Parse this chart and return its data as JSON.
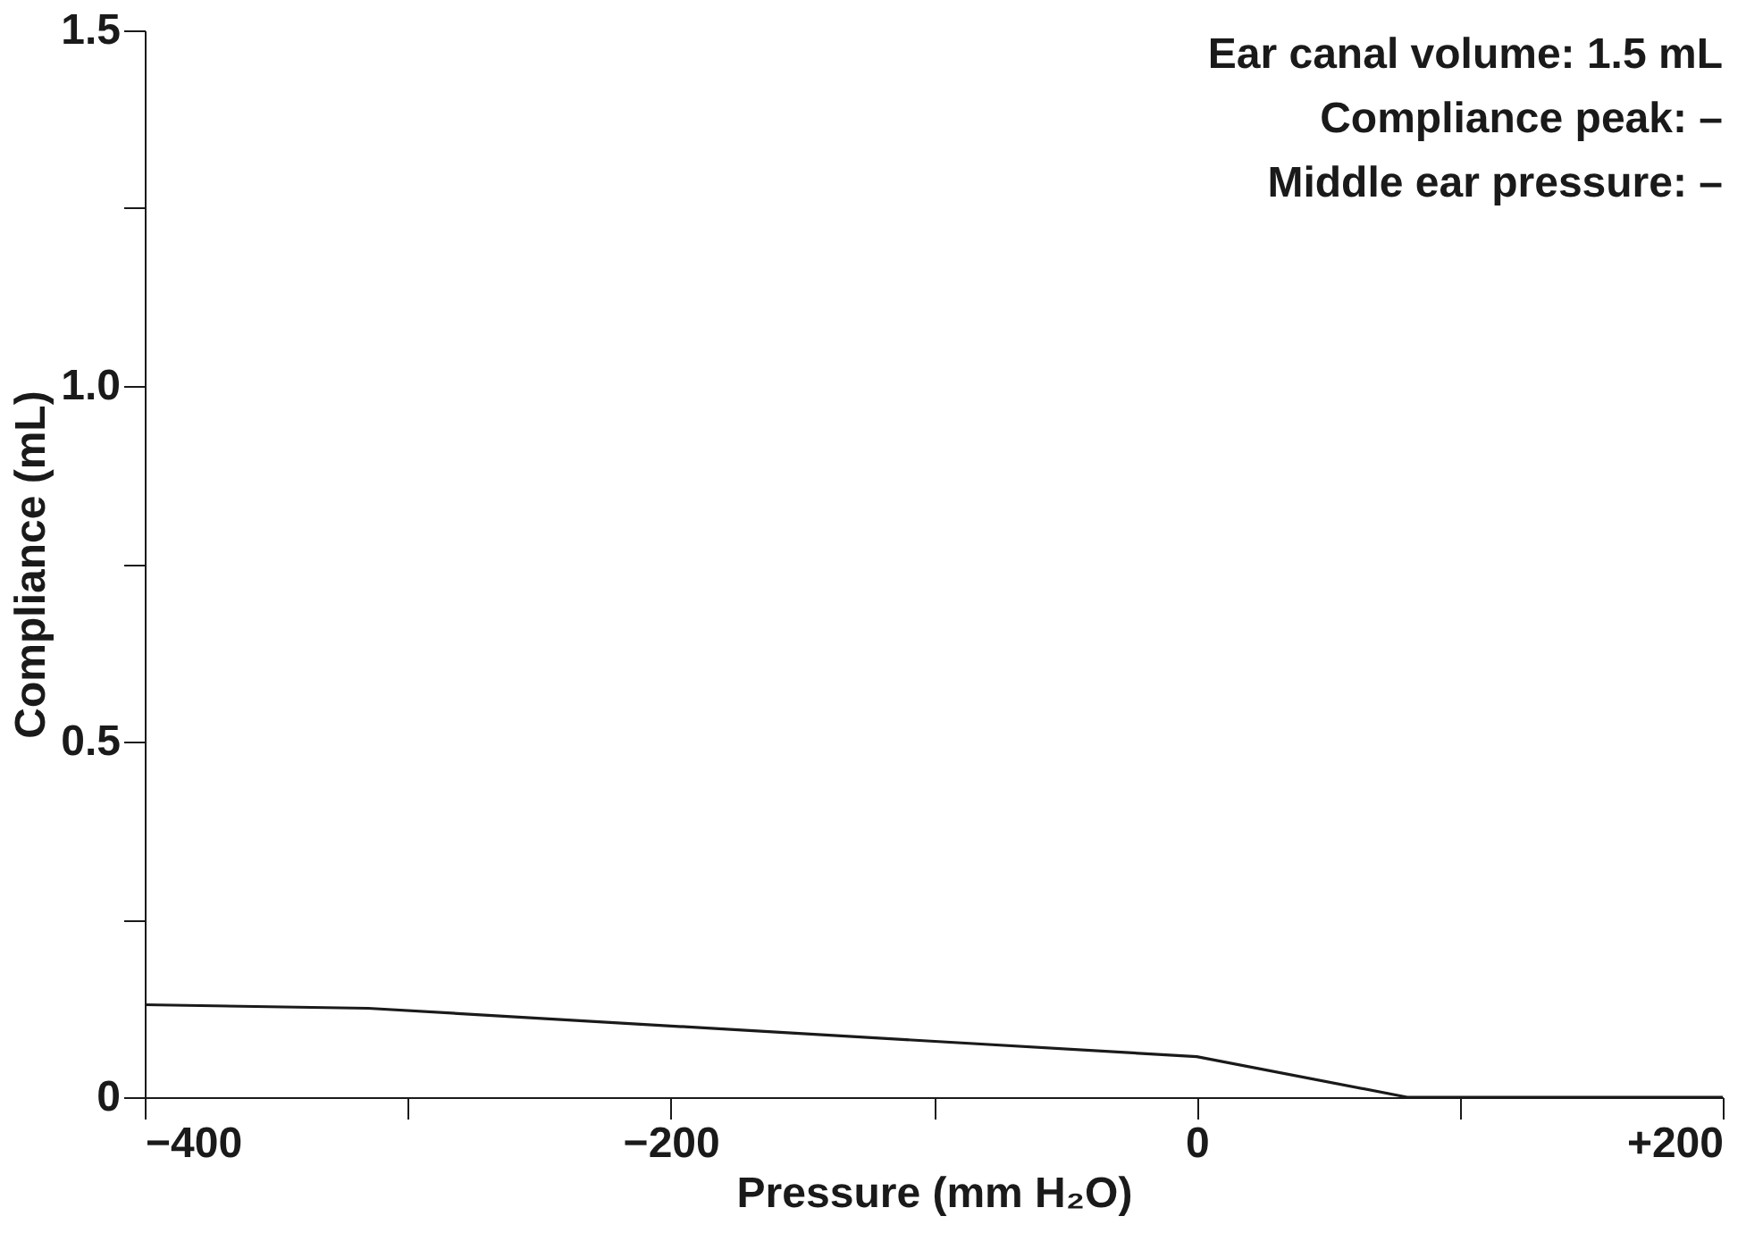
{
  "chart_data": {
    "type": "line",
    "xlabel": "Pressure (mm H₂O)",
    "ylabel": "Compliance (mL)",
    "x": [
      -400,
      -315,
      0,
      80,
      200
    ],
    "series": [
      {
        "color": "#1a1a1a",
        "values": [
          0.13,
          0.125,
          0.057,
          0,
          0
        ]
      }
    ],
    "xlim": [
      -400,
      200
    ],
    "xticks": [
      {
        "value": -400,
        "label": "−400"
      },
      {
        "value": -300,
        "label": null
      },
      {
        "value": -200,
        "label": "−200"
      },
      {
        "value": -100,
        "label": null
      },
      0,
      {
        "value": 100,
        "label": null
      },
      {
        "value": 200,
        "label": "+200"
      }
    ],
    "ylim": [
      0,
      1.5
    ],
    "yticks": [
      0,
      {
        "value": 0.25,
        "label": null
      },
      0.5,
      {
        "value": 0.75,
        "label": null
      },
      {
        "value": 1,
        "label": "1.0"
      },
      {
        "value": 1.25,
        "label": null
      },
      1.5
    ],
    "annotations": [
      "Ear canal volume:  1.5 mL",
      "Compliance peak:  –",
      "Middle ear pressure:  –"
    ],
    "grid": false,
    "legend": false,
    "marker": "none",
    "line_style": "solid"
  }
}
